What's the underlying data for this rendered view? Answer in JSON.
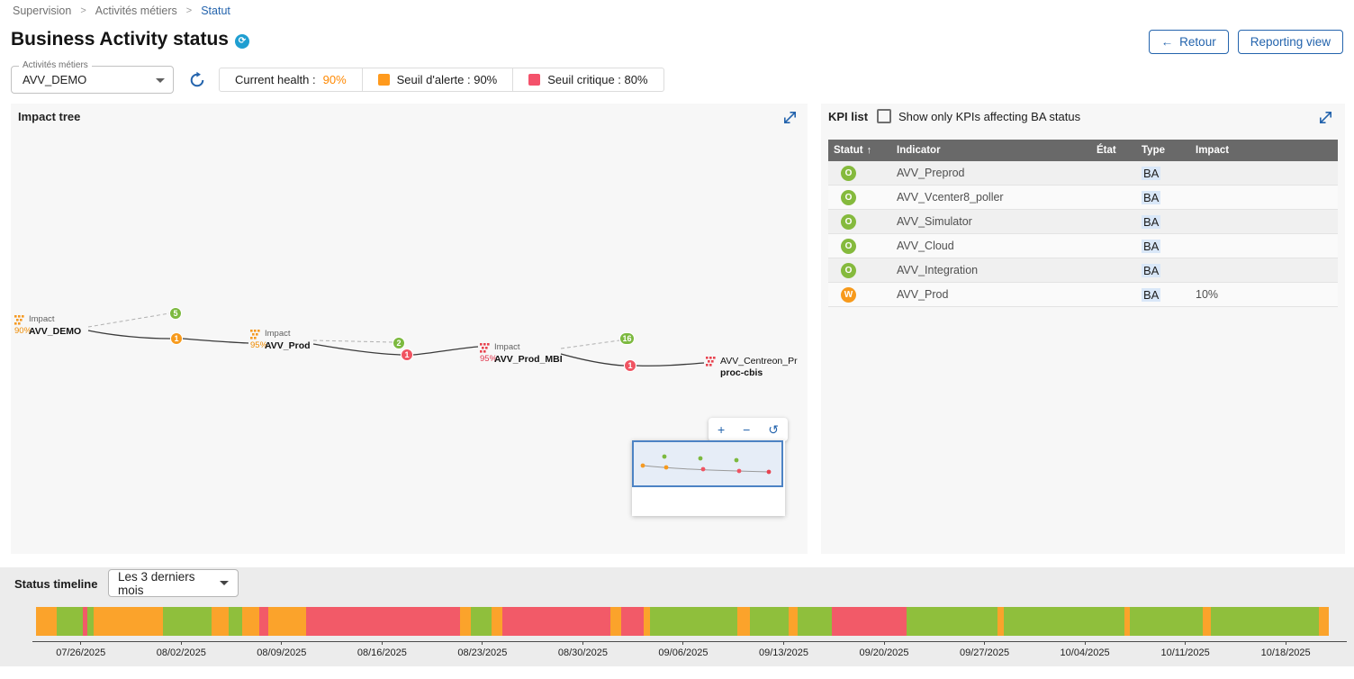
{
  "breadcrumb": {
    "items": [
      "Supervision",
      "Activités métiers",
      "Statut"
    ]
  },
  "page": {
    "title": "Business Activity status"
  },
  "actions": {
    "back": "Retour",
    "reporting": "Reporting view"
  },
  "toolbar": {
    "ba_select_label": "Activités métiers",
    "ba_select_value": "AVV_DEMO",
    "legend": {
      "current_health_label": "Current health :",
      "current_health_value": "90%",
      "warning_label": "Seuil d'alerte : 90%",
      "critical_label": "Seuil critique : 80%"
    }
  },
  "impact_tree": {
    "title": "Impact tree",
    "nodes": [
      {
        "label": "Impact",
        "health": "90%",
        "name": "AVV_DEMO"
      },
      {
        "label": "Impact",
        "health": "95%",
        "name": "AVV_Prod"
      },
      {
        "label": "Impact",
        "health": "95%",
        "name": "AVV_Prod_MBI"
      },
      {
        "name_line1": "AVV_Centreon_Pr",
        "name_line2": "proc-cbis"
      }
    ],
    "badges": [
      {
        "value": "5",
        "status": "ok"
      },
      {
        "value": "1",
        "status": "warning"
      },
      {
        "value": "2",
        "status": "ok"
      },
      {
        "value": "1",
        "status": "critical"
      },
      {
        "value": "16",
        "status": "ok"
      },
      {
        "value": "1",
        "status": "critical"
      }
    ],
    "zoom_controls": {
      "zoom_in": "+",
      "zoom_out": "−",
      "reset": "↺"
    }
  },
  "kpi_list": {
    "title": "KPI list",
    "filter_label": "Show only KPIs affecting BA status",
    "filter_checked": false,
    "columns": {
      "statut": "Statut",
      "indicator": "Indicator",
      "etat": "État",
      "type": "Type",
      "impact": "Impact"
    },
    "rows": [
      {
        "status_letter": "O",
        "status": "ok",
        "indicator": "AVV_Preprod",
        "etat": "",
        "type": "BA",
        "impact": ""
      },
      {
        "status_letter": "O",
        "status": "ok",
        "indicator": "AVV_Vcenter8_poller",
        "etat": "",
        "type": "BA",
        "impact": ""
      },
      {
        "status_letter": "O",
        "status": "ok",
        "indicator": "AVV_Simulator",
        "etat": "",
        "type": "BA",
        "impact": ""
      },
      {
        "status_letter": "O",
        "status": "ok",
        "indicator": "AVV_Cloud",
        "etat": "",
        "type": "BA",
        "impact": ""
      },
      {
        "status_letter": "O",
        "status": "ok",
        "indicator": "AVV_Integration",
        "etat": "",
        "type": "BA",
        "impact": ""
      },
      {
        "status_letter": "W",
        "status": "warning",
        "indicator": "AVV_Prod",
        "etat": "",
        "type": "BA",
        "impact": "10%"
      }
    ]
  },
  "timeline": {
    "title": "Status timeline",
    "period_value": "Les 3 derniers mois",
    "dates": [
      "07/26/2025",
      "08/02/2025",
      "08/09/2025",
      "08/16/2025",
      "08/23/2025",
      "08/30/2025",
      "09/06/2025",
      "09/13/2025",
      "09/20/2025",
      "09/27/2025",
      "10/04/2025",
      "10/11/2025",
      "10/18/2025"
    ],
    "segments": [
      {
        "status": "warning",
        "weight": 24
      },
      {
        "status": "ok",
        "weight": 30
      },
      {
        "status": "critical",
        "weight": 5
      },
      {
        "status": "ok",
        "weight": 8
      },
      {
        "status": "warning",
        "weight": 80
      },
      {
        "status": "ok",
        "weight": 56
      },
      {
        "status": "warning",
        "weight": 20
      },
      {
        "status": "ok",
        "weight": 15
      },
      {
        "status": "warning",
        "weight": 20
      },
      {
        "status": "critical",
        "weight": 10
      },
      {
        "status": "warning",
        "weight": 44
      },
      {
        "status": "critical",
        "weight": 178
      },
      {
        "status": "warning",
        "weight": 12
      },
      {
        "status": "ok",
        "weight": 24
      },
      {
        "status": "warning",
        "weight": 13
      },
      {
        "status": "critical",
        "weight": 125
      },
      {
        "status": "warning",
        "weight": 12
      },
      {
        "status": "critical",
        "weight": 26
      },
      {
        "status": "warning",
        "weight": 8
      },
      {
        "status": "ok",
        "weight": 100
      },
      {
        "status": "warning",
        "weight": 15
      },
      {
        "status": "ok",
        "weight": 45
      },
      {
        "status": "warning",
        "weight": 10
      },
      {
        "status": "ok",
        "weight": 40
      },
      {
        "status": "critical",
        "weight": 86
      },
      {
        "status": "ok",
        "weight": 105
      },
      {
        "status": "warning",
        "weight": 7
      },
      {
        "status": "ok",
        "weight": 140
      },
      {
        "status": "warning",
        "weight": 6
      },
      {
        "status": "ok",
        "weight": 84
      },
      {
        "status": "warning",
        "weight": 10
      },
      {
        "status": "ok",
        "weight": 125
      },
      {
        "status": "warning",
        "weight": 11
      }
    ]
  },
  "colors": {
    "accent_blue": "#2464ad",
    "ok_green": "#85ba3d",
    "warning_orange": "#f79a1c",
    "critical_red": "#f25a68",
    "table_header_gray": "#696969"
  }
}
